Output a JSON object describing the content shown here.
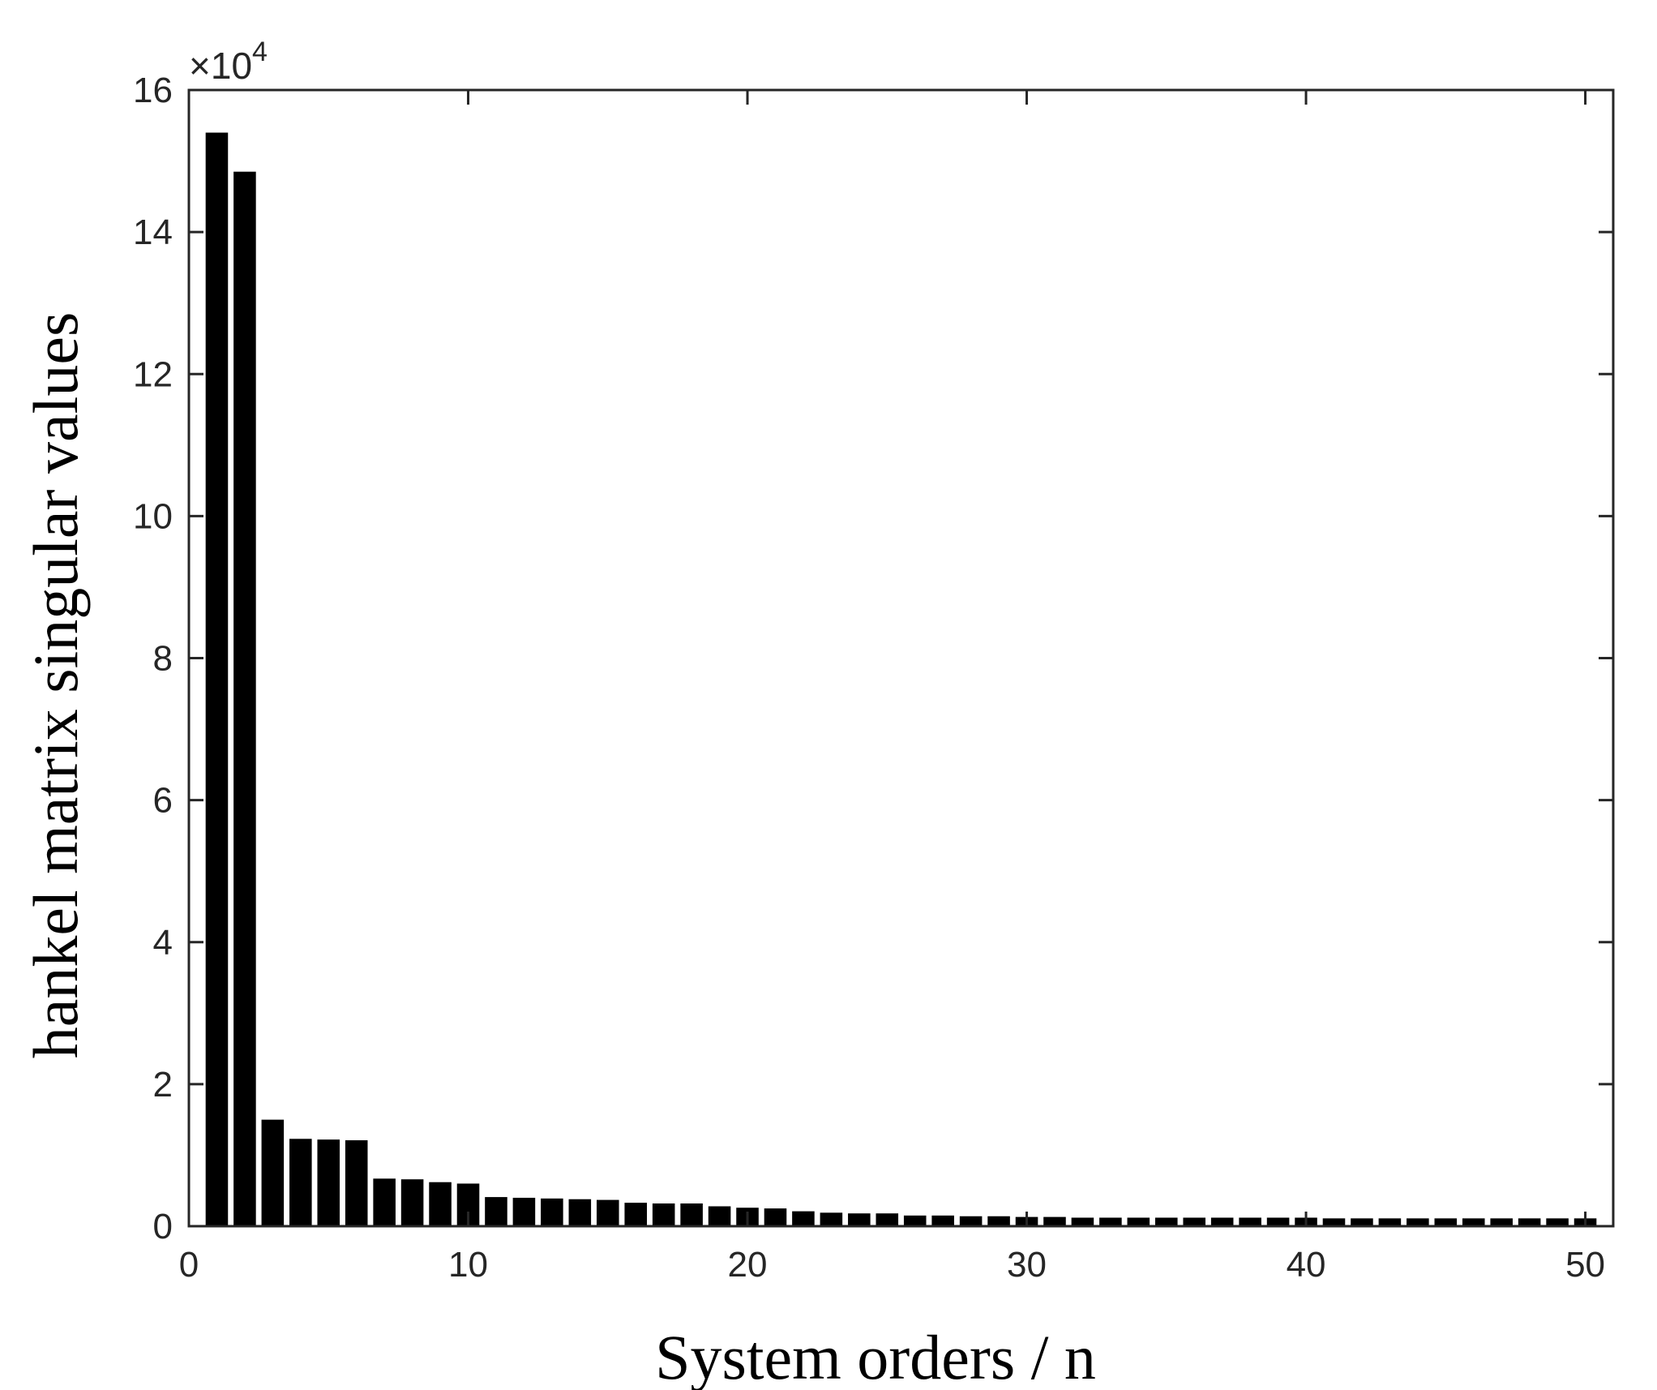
{
  "chart_data": {
    "type": "bar",
    "xlabel": "System orders / n",
    "ylabel": "hankel matrix singular values",
    "xlim": [
      0,
      51
    ],
    "ylim": [
      0,
      160000
    ],
    "x_ticks": [
      "0",
      "10",
      "20",
      "30",
      "40",
      "50"
    ],
    "y_ticks": [
      "0",
      "2",
      "4",
      "6",
      "8",
      "10",
      "12",
      "14",
      "16"
    ],
    "y_multiplier": {
      "base": "×10",
      "exponent": "4"
    },
    "grid": false,
    "bar_color": "#000000",
    "x": [
      1,
      2,
      3,
      4,
      5,
      6,
      7,
      8,
      9,
      10,
      11,
      12,
      13,
      14,
      15,
      16,
      17,
      18,
      19,
      20,
      21,
      22,
      23,
      24,
      25,
      26,
      27,
      28,
      29,
      30,
      31,
      32,
      33,
      34,
      35,
      36,
      37,
      38,
      39,
      40,
      41,
      42,
      43,
      44,
      45,
      46,
      47,
      48,
      49,
      50
    ],
    "values": [
      154000,
      148500,
      15000,
      12300,
      12200,
      12100,
      6700,
      6600,
      6200,
      6000,
      4100,
      4000,
      3900,
      3800,
      3700,
      3300,
      3200,
      3200,
      2800,
      2600,
      2500,
      2100,
      1900,
      1800,
      1800,
      1500,
      1500,
      1400,
      1400,
      1300,
      1300,
      1200,
      1200,
      1200,
      1200,
      1200,
      1200,
      1200,
      1200,
      1200,
      1100,
      1100,
      1100,
      1100,
      1100,
      1100,
      1100,
      1100,
      1100,
      1100
    ]
  }
}
